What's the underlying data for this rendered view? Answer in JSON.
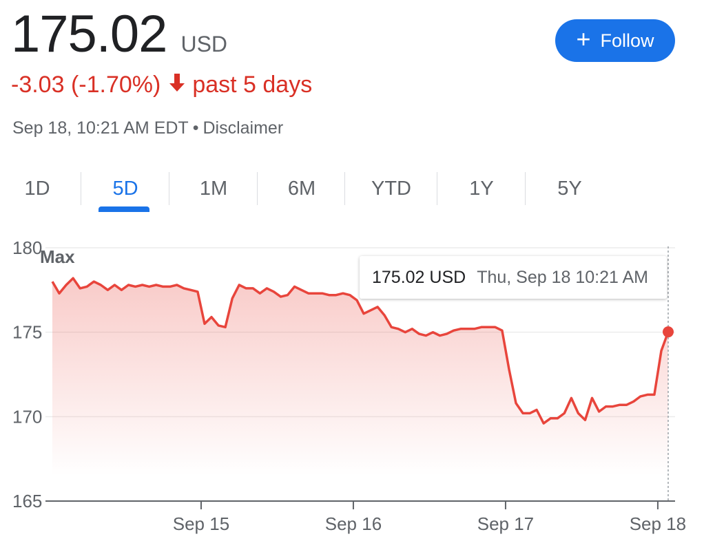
{
  "quote": {
    "price": "175.02",
    "currency": "USD",
    "change": "-3.03 (-1.70%)",
    "period": "past 5 days",
    "timestamp": "Sep 18, 10:21 AM EDT",
    "disclaimer": "Disclaimer",
    "change_color": "#d93025"
  },
  "follow_button": {
    "label": "Follow",
    "icon": "plus-icon",
    "color": "#1a73e8"
  },
  "tabs": [
    {
      "label": "1D",
      "active": false
    },
    {
      "label": "5D",
      "active": true
    },
    {
      "label": "1M",
      "active": false
    },
    {
      "label": "6M",
      "active": false
    },
    {
      "label": "YTD",
      "active": false
    },
    {
      "label": "1Y",
      "active": false
    },
    {
      "label": "5Y",
      "active": false
    }
  ],
  "tooltip": {
    "price": "175.02 USD",
    "date": "Thu, Sep 18 10:21 AM"
  },
  "chart_data": {
    "type": "area",
    "series_color": "#e8453c",
    "annotation": "Max",
    "ylim": [
      165,
      180
    ],
    "yticks": [
      165,
      170,
      175,
      180
    ],
    "xticks": [
      "Sep 15",
      "Sep 16",
      "Sep 17",
      "Sep 18"
    ],
    "grid": true,
    "last_point": {
      "value": 175.02,
      "label": "175.02 USD"
    },
    "x": [
      0,
      1,
      2,
      3,
      4,
      5,
      6,
      7,
      8,
      9,
      10,
      11,
      12,
      13,
      14,
      15,
      16,
      17,
      18,
      19,
      20,
      21,
      22,
      23,
      24,
      25,
      26,
      27,
      28,
      29,
      30,
      31,
      32,
      33,
      34,
      35,
      36,
      37,
      38,
      39,
      40,
      41,
      42,
      43,
      44,
      45,
      46,
      47,
      48,
      49,
      50,
      51,
      52,
      53,
      54,
      55,
      56,
      57,
      58,
      59,
      60,
      61,
      62,
      63,
      64,
      65,
      66,
      67,
      68,
      69,
      70,
      71,
      72,
      73,
      74,
      75,
      76,
      77,
      78,
      79,
      80,
      81,
      82,
      83,
      84,
      85,
      86,
      87,
      88,
      89
    ],
    "values": [
      178.0,
      177.3,
      177.8,
      178.2,
      177.6,
      177.7,
      178.0,
      177.8,
      177.5,
      177.8,
      177.5,
      177.8,
      177.7,
      177.8,
      177.7,
      177.8,
      177.7,
      177.7,
      177.8,
      177.6,
      177.5,
      177.4,
      175.5,
      175.9,
      175.4,
      175.3,
      177.0,
      177.8,
      177.6,
      177.6,
      177.3,
      177.6,
      177.4,
      177.1,
      177.2,
      177.7,
      177.5,
      177.3,
      177.3,
      177.3,
      177.2,
      177.2,
      177.3,
      177.2,
      176.9,
      176.1,
      176.3,
      176.5,
      176.0,
      175.3,
      175.2,
      175.0,
      175.2,
      174.9,
      174.8,
      175.0,
      174.8,
      174.9,
      175.1,
      175.2,
      175.2,
      175.2,
      175.3,
      175.3,
      175.3,
      175.1,
      172.8,
      170.8,
      170.2,
      170.2,
      170.4,
      169.6,
      169.9,
      169.9,
      170.2,
      171.1,
      170.2,
      169.8,
      171.1,
      170.3,
      170.6,
      170.6,
      170.7,
      170.7,
      170.9,
      171.2,
      171.3,
      171.3,
      173.9,
      175.02
    ],
    "x_tick_positions": [
      21.5,
      43.5,
      65.5,
      87.5
    ]
  }
}
